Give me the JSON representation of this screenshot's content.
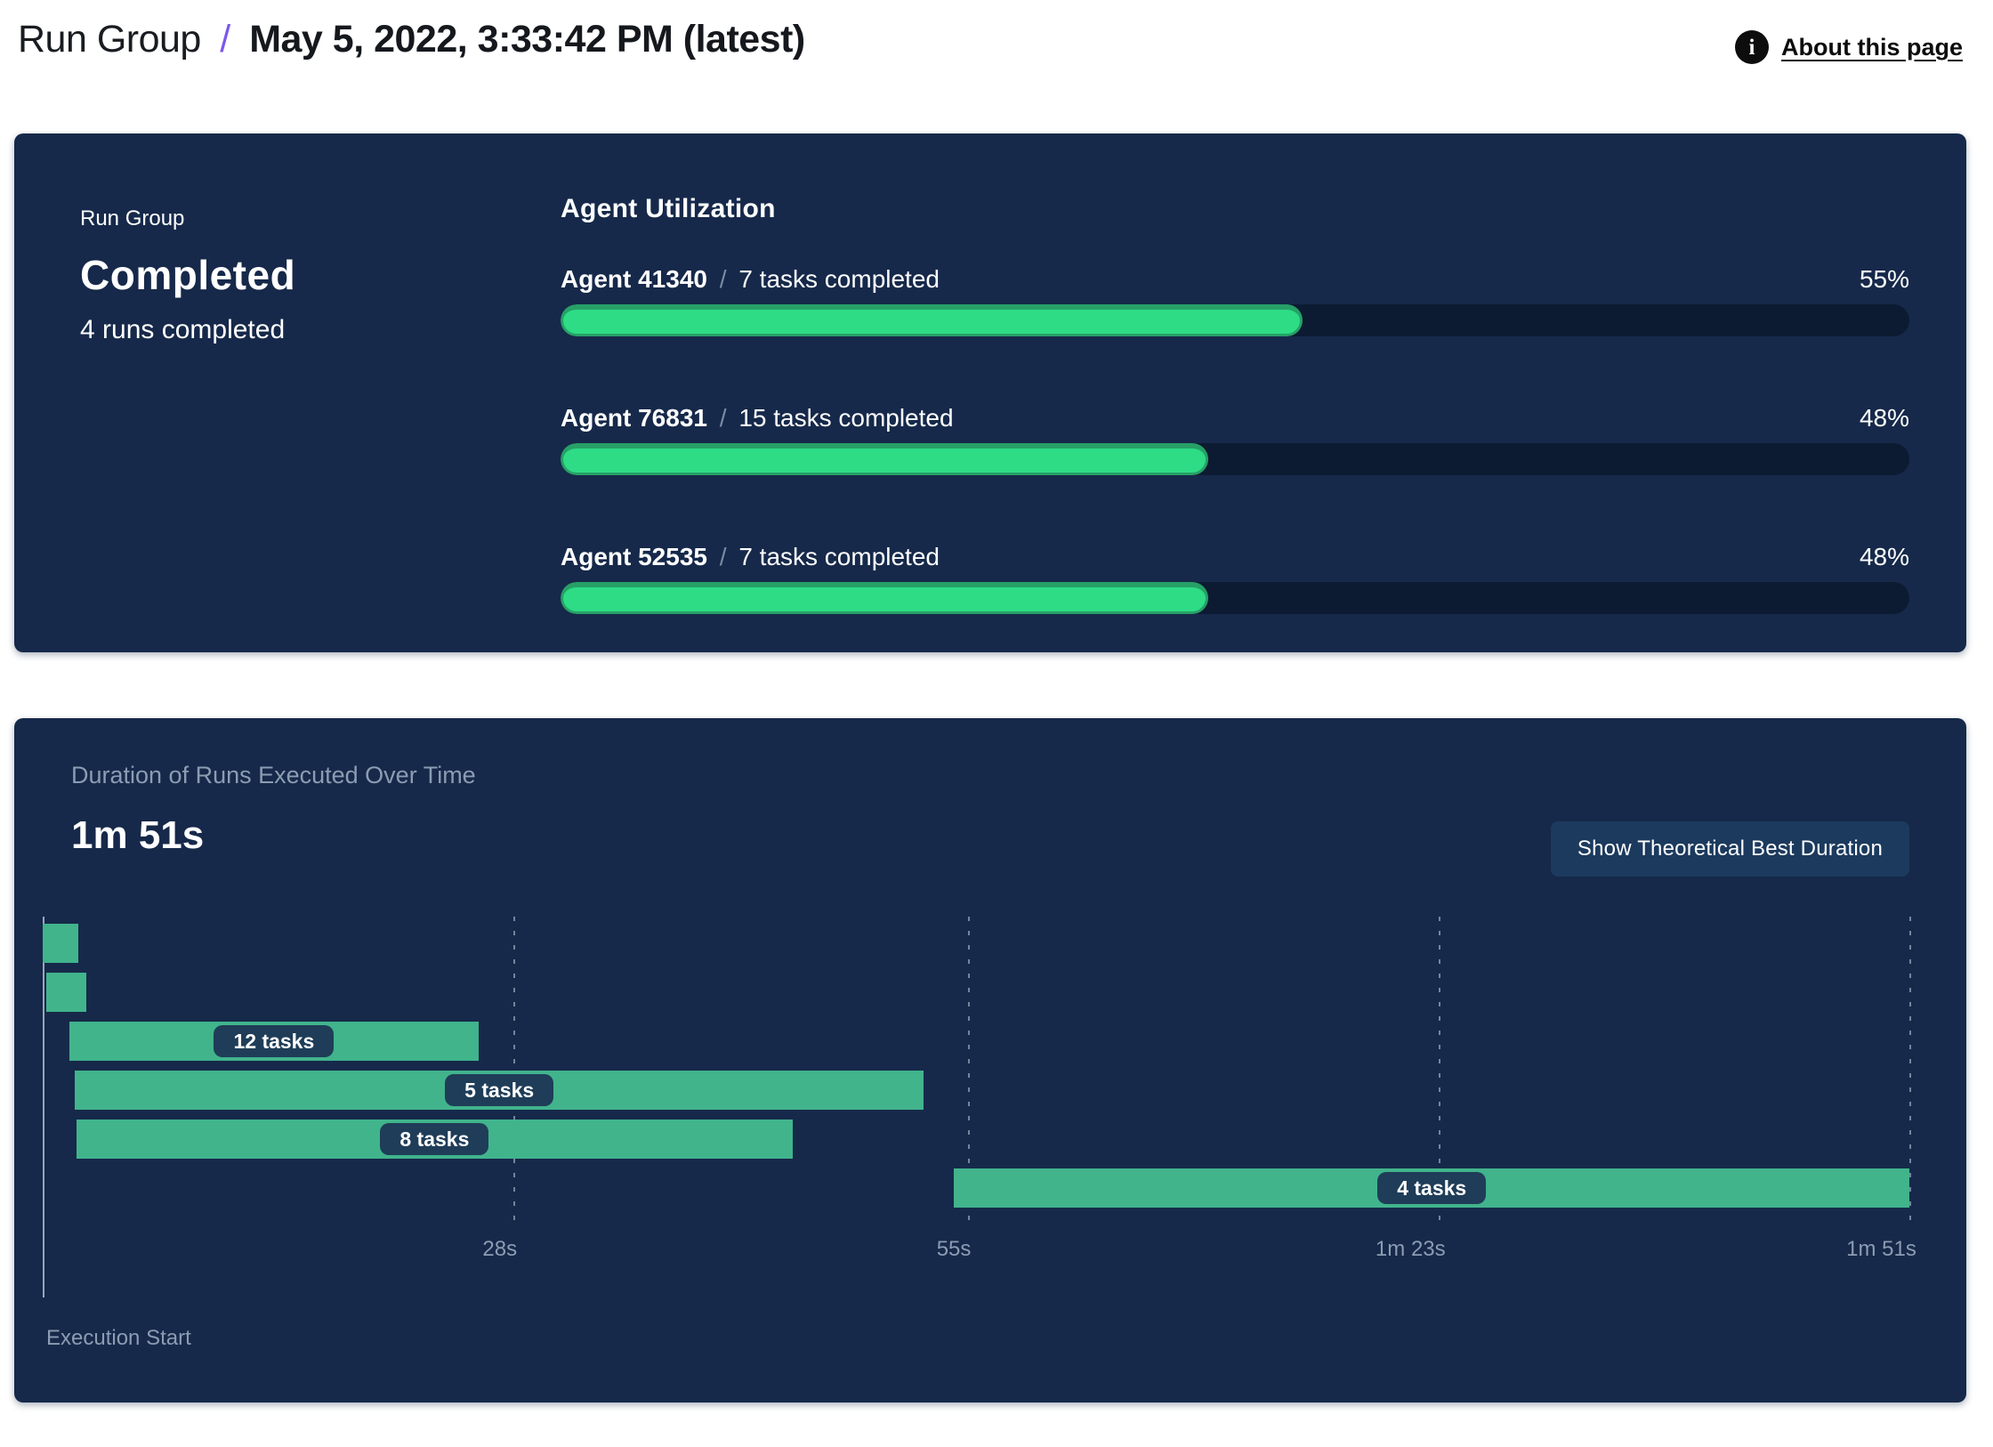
{
  "header": {
    "breadcrumb_root": "Run Group",
    "separator": "/",
    "title": "May 5, 2022, 3:33:42 PM (latest)",
    "about_link": "About this page",
    "info_icon_glyph": "i"
  },
  "summary": {
    "eyebrow": "Run Group",
    "status": "Completed",
    "subtext": "4 runs completed"
  },
  "agent_utilization": {
    "title": "Agent Utilization",
    "separator": "/",
    "agents": [
      {
        "name": "Agent 41340",
        "tasks": "7 tasks completed",
        "percent": 55,
        "percent_label": "55%"
      },
      {
        "name": "Agent 76831",
        "tasks": "15 tasks completed",
        "percent": 48,
        "percent_label": "48%"
      },
      {
        "name": "Agent 52535",
        "tasks": "7 tasks completed",
        "percent": 48,
        "percent_label": "48%"
      }
    ]
  },
  "duration_chart": {
    "title": "Duration of Runs Executed Over Time",
    "total_duration": "1m 51s",
    "button_label": "Show Theoretical Best Duration",
    "axis_label": "Execution Start"
  },
  "chart_data": {
    "type": "gantt",
    "title": "Duration of Runs Executed Over Time",
    "total_duration_label": "1m 51s",
    "x_axis": {
      "min_s": 0,
      "max_s": 111,
      "ticks": [
        {
          "label": "28s",
          "s": 28
        },
        {
          "label": "55s",
          "s": 55
        },
        {
          "label": "1m 23s",
          "s": 83
        },
        {
          "label": "1m 51s",
          "s": 111
        }
      ]
    },
    "runs": [
      {
        "start_s": 0.0,
        "end_s": 2.1,
        "tasks": null,
        "label": ""
      },
      {
        "start_s": 0.2,
        "end_s": 2.6,
        "tasks": null,
        "label": ""
      },
      {
        "start_s": 1.6,
        "end_s": 25.9,
        "tasks": 12,
        "label": "12 tasks"
      },
      {
        "start_s": 1.9,
        "end_s": 52.4,
        "tasks": 5,
        "label": "5 tasks"
      },
      {
        "start_s": 2.0,
        "end_s": 44.6,
        "tasks": 8,
        "label": "8 tasks"
      },
      {
        "start_s": 54.2,
        "end_s": 111.0,
        "tasks": 4,
        "label": "4 tasks"
      }
    ],
    "colors": {
      "card_navy": "#16294a",
      "progress_track": "#0c1b31",
      "progress_green": "#2edc86",
      "progress_green_rim": "#27a067",
      "gantt_green": "#41b48c",
      "pill_navy": "#1f3d58",
      "muted_text": "#8c9cb2",
      "accent_purple": "#7b57ee"
    }
  }
}
